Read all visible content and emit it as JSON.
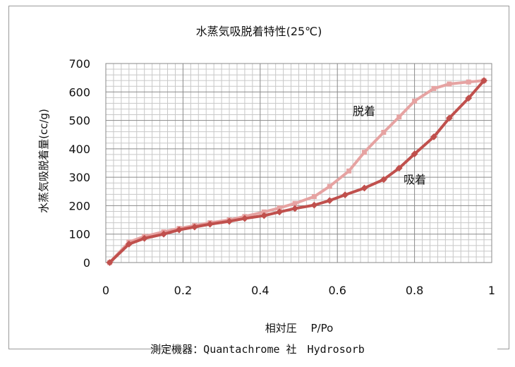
{
  "footer_note": "測定機器：Quantachrome 社　Hydrosorb",
  "chart_data": {
    "type": "line",
    "title": "水蒸気吸脱着特性(25℃)",
    "xlabel": "相対圧　 P/Po",
    "ylabel": "水蒸気吸脱着量(cc/g)",
    "xlim": [
      0,
      1
    ],
    "ylim": [
      0,
      700
    ],
    "x_ticks": [
      "0",
      "0.2",
      "0.4",
      "0.6",
      "0.8",
      "1"
    ],
    "y_ticks": [
      "0",
      "100",
      "200",
      "300",
      "400",
      "500",
      "600",
      "700"
    ],
    "grid": true,
    "series": [
      {
        "name": "吸着",
        "color": "#c0504d",
        "x": [
          0.01,
          0.06,
          0.1,
          0.15,
          0.19,
          0.23,
          0.27,
          0.32,
          0.36,
          0.41,
          0.45,
          0.49,
          0.54,
          0.58,
          0.62,
          0.67,
          0.72,
          0.76,
          0.8,
          0.85,
          0.89,
          0.94,
          0.98
        ],
        "y": [
          0,
          65,
          85,
          100,
          115,
          125,
          135,
          145,
          155,
          165,
          178,
          190,
          202,
          218,
          238,
          262,
          292,
          332,
          382,
          442,
          508,
          578,
          640
        ]
      },
      {
        "name": "脱着",
        "color": "#e6a3a2",
        "x": [
          0.98,
          0.94,
          0.89,
          0.85,
          0.8,
          0.76,
          0.72,
          0.67,
          0.63,
          0.58,
          0.54,
          0.49,
          0.45,
          0.41,
          0.36,
          0.32,
          0.27,
          0.23,
          0.19,
          0.15,
          0.1,
          0.06,
          0.01
        ],
        "y": [
          640,
          635,
          628,
          612,
          568,
          512,
          458,
          388,
          322,
          268,
          232,
          208,
          192,
          178,
          162,
          150,
          140,
          130,
          120,
          108,
          92,
          72,
          0
        ]
      }
    ]
  }
}
